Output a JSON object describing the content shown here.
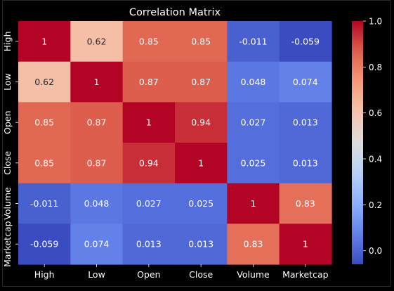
{
  "chart_data": {
    "type": "heatmap",
    "title": "Correlation Matrix",
    "xlabel": "",
    "ylabel": "",
    "colormap": "coolwarm",
    "vmin": -0.059,
    "vmax": 1.0,
    "colors": {
      "background": "#000000",
      "text": "#ffffff"
    },
    "labels": [
      "High",
      "Low",
      "Open",
      "Close",
      "Volume",
      "Marketcap"
    ],
    "x_labels": [
      "High",
      "Low",
      "Open",
      "Close",
      "Volume",
      "Marketcap"
    ],
    "y_labels": [
      "High",
      "Low",
      "Open",
      "Close",
      "Volume",
      "Marketcap"
    ],
    "values": [
      [
        1,
        0.62,
        0.85,
        0.85,
        -0.011,
        -0.059
      ],
      [
        0.62,
        1,
        0.87,
        0.87,
        0.048,
        0.074
      ],
      [
        0.85,
        0.87,
        1,
        0.94,
        0.027,
        0.013
      ],
      [
        0.85,
        0.87,
        0.94,
        1,
        0.025,
        0.013
      ],
      [
        -0.011,
        0.048,
        0.027,
        0.025,
        1,
        0.83
      ],
      [
        -0.059,
        0.074,
        0.013,
        0.013,
        0.83,
        1
      ]
    ],
    "annotations": [
      [
        "1",
        "0.62",
        "0.85",
        "0.85",
        "-0.011",
        "-0.059"
      ],
      [
        "0.62",
        "1",
        "0.87",
        "0.87",
        "0.048",
        "0.074"
      ],
      [
        "0.85",
        "0.87",
        "1",
        "0.94",
        "0.027",
        "0.013"
      ],
      [
        "0.85",
        "0.87",
        "0.94",
        "1",
        "0.025",
        "0.013"
      ],
      [
        "-0.011",
        "0.048",
        "0.027",
        "0.025",
        "1",
        "0.83"
      ],
      [
        "-0.059",
        "0.074",
        "0.013",
        "0.013",
        "0.83",
        "1"
      ]
    ],
    "colorbar": {
      "ticks": [
        0.0,
        0.2,
        0.4,
        0.6,
        0.8,
        1.0
      ],
      "tick_labels": [
        "0.0",
        "0.2",
        "0.4",
        "0.6",
        "0.8",
        "1.0"
      ]
    },
    "grid": false
  }
}
